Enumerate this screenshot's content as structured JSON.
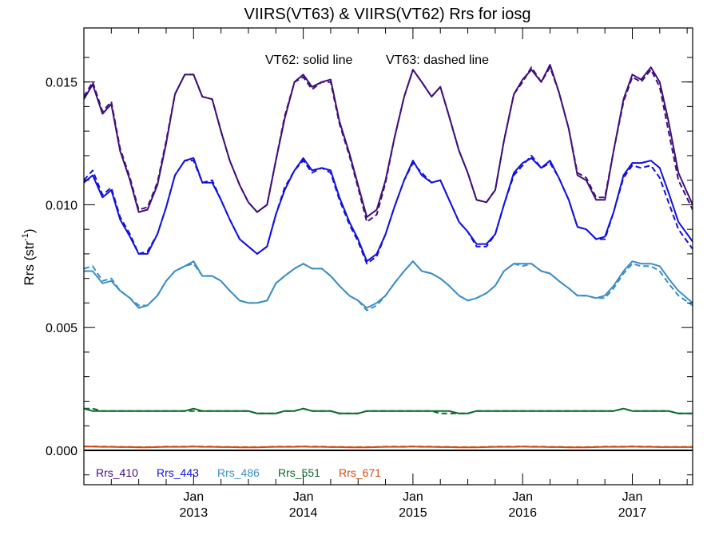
{
  "chart_data": {
    "type": "line",
    "title": "VIIRS(VT63) & VIIRS(VT62)  Rrs for iosg",
    "ylabel_main": "Rrs (str",
    "ylabel_sup": "-1",
    "ylabel_close": ")",
    "annotation_solid": "VT62: solid line",
    "annotation_dashed": "VT63: dashed line",
    "xlim": [
      2012.0,
      2017.55
    ],
    "ylim": [
      -0.0014,
      0.0172
    ],
    "y_ticks": [
      {
        "value": 0.0,
        "label": "0.000"
      },
      {
        "value": 0.005,
        "label": "0.005"
      },
      {
        "value": 0.01,
        "label": "0.010"
      },
      {
        "value": 0.015,
        "label": "0.015"
      }
    ],
    "x_ticks": [
      {
        "value": 2013.0,
        "month": "Jan",
        "year": "2013"
      },
      {
        "value": 2014.0,
        "month": "Jan",
        "year": "2014"
      },
      {
        "value": 2015.0,
        "month": "Jan",
        "year": "2015"
      },
      {
        "value": 2016.0,
        "month": "Jan",
        "year": "2016"
      },
      {
        "value": 2017.0,
        "month": "Jan",
        "year": "2017"
      }
    ],
    "zero_line": 0.0,
    "legend_position": "bottom-left",
    "x": [
      2012.0,
      2012.08,
      2012.17,
      2012.25,
      2012.33,
      2012.42,
      2012.5,
      2012.58,
      2012.67,
      2012.75,
      2012.83,
      2012.92,
      2013.0,
      2013.08,
      2013.17,
      2013.25,
      2013.33,
      2013.42,
      2013.5,
      2013.58,
      2013.67,
      2013.75,
      2013.83,
      2013.92,
      2014.0,
      2014.08,
      2014.17,
      2014.25,
      2014.33,
      2014.42,
      2014.5,
      2014.58,
      2014.67,
      2014.75,
      2014.83,
      2014.92,
      2015.0,
      2015.08,
      2015.17,
      2015.25,
      2015.33,
      2015.42,
      2015.5,
      2015.58,
      2015.67,
      2015.75,
      2015.83,
      2015.92,
      2016.0,
      2016.08,
      2016.17,
      2016.25,
      2016.33,
      2016.42,
      2016.5,
      2016.58,
      2016.67,
      2016.75,
      2016.83,
      2016.92,
      2017.0,
      2017.08,
      2017.17,
      2017.25,
      2017.33,
      2017.42,
      2017.55
    ],
    "series": [
      {
        "name": "Rrs_410",
        "color": "#3f0f7a",
        "solid": [
          0.0143,
          0.0149,
          0.0137,
          0.0141,
          0.0122,
          0.011,
          0.0097,
          0.0098,
          0.0108,
          0.0125,
          0.0145,
          0.0153,
          0.0153,
          0.0144,
          0.0143,
          0.013,
          0.0118,
          0.0108,
          0.0101,
          0.0097,
          0.01,
          0.0118,
          0.0135,
          0.015,
          0.0153,
          0.0148,
          0.015,
          0.0151,
          0.0134,
          0.0121,
          0.0108,
          0.0095,
          0.0098,
          0.011,
          0.0127,
          0.0144,
          0.0155,
          0.015,
          0.0144,
          0.0148,
          0.0136,
          0.0122,
          0.0113,
          0.0102,
          0.0101,
          0.0106,
          0.0126,
          0.0145,
          0.0151,
          0.0155,
          0.015,
          0.0157,
          0.0146,
          0.0131,
          0.0112,
          0.011,
          0.0102,
          0.0102,
          0.0122,
          0.0143,
          0.0153,
          0.0151,
          0.0156,
          0.015,
          0.0134,
          0.0113,
          0.01
        ],
        "dashed": [
          0.0144,
          0.015,
          0.0138,
          0.0142,
          0.0123,
          0.0111,
          0.0098,
          0.0099,
          0.0109,
          0.0126,
          0.0145,
          0.0153,
          0.0153,
          0.0144,
          0.0143,
          0.013,
          0.0118,
          0.0108,
          0.0101,
          0.0097,
          0.01,
          0.0118,
          0.0136,
          0.015,
          0.0152,
          0.0147,
          0.015,
          0.015,
          0.0133,
          0.012,
          0.0107,
          0.0093,
          0.0096,
          0.0109,
          0.0127,
          0.0144,
          0.0155,
          0.015,
          0.0144,
          0.0148,
          0.0136,
          0.0122,
          0.0113,
          0.0102,
          0.0101,
          0.0106,
          0.0126,
          0.0145,
          0.015,
          0.0156,
          0.015,
          0.0156,
          0.0146,
          0.0131,
          0.0113,
          0.0111,
          0.0103,
          0.0103,
          0.0122,
          0.0142,
          0.0152,
          0.015,
          0.0155,
          0.0148,
          0.013,
          0.011,
          0.0098
        ]
      },
      {
        "name": "Rrs_443",
        "color": "#1010e0",
        "solid": [
          0.0109,
          0.0112,
          0.0103,
          0.0106,
          0.0094,
          0.0087,
          0.008,
          0.008,
          0.0088,
          0.0099,
          0.0112,
          0.0118,
          0.0119,
          0.0109,
          0.0109,
          0.0102,
          0.0094,
          0.0086,
          0.0083,
          0.008,
          0.0083,
          0.0096,
          0.0106,
          0.0114,
          0.0119,
          0.0114,
          0.0115,
          0.0114,
          0.0103,
          0.0093,
          0.0086,
          0.0077,
          0.008,
          0.0088,
          0.0099,
          0.011,
          0.0118,
          0.0112,
          0.0109,
          0.011,
          0.0102,
          0.0093,
          0.0089,
          0.0084,
          0.0084,
          0.0088,
          0.01,
          0.0113,
          0.0117,
          0.0119,
          0.0115,
          0.0118,
          0.0111,
          0.0102,
          0.0091,
          0.009,
          0.0086,
          0.0087,
          0.0097,
          0.0112,
          0.0117,
          0.0117,
          0.0118,
          0.0115,
          0.0105,
          0.0093,
          0.0085
        ],
        "dashed": [
          0.011,
          0.0114,
          0.0104,
          0.0107,
          0.0095,
          0.0088,
          0.008,
          0.0081,
          0.0088,
          0.0099,
          0.0112,
          0.0118,
          0.0118,
          0.0109,
          0.011,
          0.0102,
          0.0094,
          0.0086,
          0.0083,
          0.008,
          0.0083,
          0.0096,
          0.0107,
          0.0114,
          0.0118,
          0.0113,
          0.0115,
          0.0113,
          0.0102,
          0.0092,
          0.0085,
          0.0076,
          0.0079,
          0.0088,
          0.0099,
          0.011,
          0.0117,
          0.0113,
          0.0109,
          0.011,
          0.0102,
          0.0093,
          0.0089,
          0.0083,
          0.0083,
          0.0088,
          0.01,
          0.0112,
          0.0116,
          0.012,
          0.0115,
          0.0117,
          0.0111,
          0.0102,
          0.0091,
          0.009,
          0.0086,
          0.0086,
          0.0097,
          0.0111,
          0.0116,
          0.0115,
          0.0116,
          0.0111,
          0.0101,
          0.009,
          0.0082
        ]
      },
      {
        "name": "Rrs_486",
        "color": "#3a8ec8",
        "solid": [
          0.0073,
          0.0073,
          0.0068,
          0.0069,
          0.0065,
          0.0062,
          0.0058,
          0.0059,
          0.0063,
          0.0069,
          0.0073,
          0.0075,
          0.0077,
          0.0071,
          0.0071,
          0.0069,
          0.0065,
          0.0061,
          0.006,
          0.006,
          0.0061,
          0.0068,
          0.0071,
          0.0074,
          0.0076,
          0.0074,
          0.0074,
          0.0071,
          0.0067,
          0.0063,
          0.0061,
          0.0058,
          0.006,
          0.0063,
          0.0068,
          0.0073,
          0.0077,
          0.0073,
          0.0072,
          0.007,
          0.0067,
          0.0063,
          0.0061,
          0.0062,
          0.0064,
          0.0067,
          0.0073,
          0.0076,
          0.0076,
          0.0076,
          0.0073,
          0.0072,
          0.0069,
          0.0066,
          0.0063,
          0.0063,
          0.0062,
          0.0063,
          0.0067,
          0.0073,
          0.0077,
          0.0076,
          0.0076,
          0.0075,
          0.007,
          0.0065,
          0.006
        ],
        "dashed": [
          0.0074,
          0.0075,
          0.0069,
          0.007,
          0.0065,
          0.0062,
          0.0059,
          0.0059,
          0.0063,
          0.0069,
          0.0073,
          0.0075,
          0.0076,
          0.0071,
          0.0071,
          0.0069,
          0.0065,
          0.0061,
          0.006,
          0.006,
          0.0061,
          0.0068,
          0.0071,
          0.0074,
          0.0076,
          0.0074,
          0.0074,
          0.0071,
          0.0067,
          0.0063,
          0.0061,
          0.0057,
          0.0059,
          0.0063,
          0.0068,
          0.0073,
          0.0077,
          0.0073,
          0.0072,
          0.007,
          0.0067,
          0.0063,
          0.0061,
          0.0062,
          0.0064,
          0.0067,
          0.0073,
          0.0076,
          0.0075,
          0.0076,
          0.0073,
          0.0072,
          0.0069,
          0.0066,
          0.0063,
          0.0063,
          0.0062,
          0.0062,
          0.0066,
          0.0072,
          0.0076,
          0.0075,
          0.0075,
          0.0073,
          0.0068,
          0.0063,
          0.0059
        ]
      },
      {
        "name": "Rrs_551",
        "color": "#0c6a2c",
        "solid": [
          0.0017,
          0.0016,
          0.0016,
          0.0016,
          0.0016,
          0.0016,
          0.0016,
          0.0016,
          0.0016,
          0.0016,
          0.0016,
          0.0016,
          0.0017,
          0.0016,
          0.0016,
          0.0016,
          0.0016,
          0.0016,
          0.0016,
          0.0015,
          0.0015,
          0.0015,
          0.0016,
          0.0016,
          0.0017,
          0.0016,
          0.0016,
          0.0016,
          0.0015,
          0.0015,
          0.0015,
          0.0016,
          0.0016,
          0.0016,
          0.0016,
          0.0016,
          0.0016,
          0.0016,
          0.0016,
          0.0016,
          0.0016,
          0.0015,
          0.0015,
          0.0016,
          0.0016,
          0.0016,
          0.0016,
          0.0016,
          0.0016,
          0.0016,
          0.0016,
          0.0016,
          0.0016,
          0.0016,
          0.0016,
          0.0016,
          0.0016,
          0.0016,
          0.0016,
          0.0017,
          0.0016,
          0.0016,
          0.0016,
          0.0016,
          0.0016,
          0.0015,
          0.0015
        ],
        "dashed": [
          0.0017,
          0.0017,
          0.0016,
          0.0016,
          0.0016,
          0.0016,
          0.0016,
          0.0016,
          0.0016,
          0.0016,
          0.0016,
          0.0016,
          0.0016,
          0.0016,
          0.0016,
          0.0016,
          0.0016,
          0.0016,
          0.0016,
          0.0015,
          0.0015,
          0.0015,
          0.0016,
          0.0016,
          0.0017,
          0.0016,
          0.0016,
          0.0016,
          0.0015,
          0.0015,
          0.0015,
          0.0016,
          0.0016,
          0.0016,
          0.0016,
          0.0016,
          0.0016,
          0.0016,
          0.0016,
          0.0015,
          0.0015,
          0.0015,
          0.0015,
          0.0016,
          0.0016,
          0.0016,
          0.0016,
          0.0016,
          0.0016,
          0.0016,
          0.0016,
          0.0016,
          0.0016,
          0.0016,
          0.0016,
          0.0016,
          0.0016,
          0.0016,
          0.0016,
          0.0017,
          0.0016,
          0.0016,
          0.0016,
          0.0016,
          0.0016,
          0.0015,
          0.0015
        ]
      },
      {
        "name": "Rrs_671",
        "color": "#d24a10",
        "solid": [
          0.00015,
          0.00015,
          0.00014,
          0.00014,
          0.00013,
          0.00013,
          0.00012,
          0.00012,
          0.00013,
          0.00014,
          0.00014,
          0.00014,
          0.00015,
          0.00014,
          0.00014,
          0.00013,
          0.00013,
          0.00012,
          0.00012,
          0.00012,
          0.00013,
          0.00014,
          0.00014,
          0.00014,
          0.00015,
          0.00014,
          0.00014,
          0.00013,
          0.00013,
          0.00012,
          0.00012,
          0.00012,
          0.00013,
          0.00014,
          0.00014,
          0.00014,
          0.00015,
          0.00014,
          0.00014,
          0.00013,
          0.00013,
          0.00012,
          0.00012,
          0.00012,
          0.00013,
          0.00014,
          0.00014,
          0.00014,
          0.00015,
          0.00014,
          0.00014,
          0.00013,
          0.00013,
          0.00012,
          0.00012,
          0.00012,
          0.00013,
          0.00014,
          0.00014,
          0.00014,
          0.00015,
          0.00014,
          0.00014,
          0.00013,
          0.00013,
          0.00013,
          0.00013
        ],
        "dashed": [
          0.00016,
          0.00016,
          0.00015,
          0.00015,
          0.00014,
          0.00014,
          0.00013,
          0.00013,
          0.00014,
          0.00015,
          0.00015,
          0.00015,
          0.00016,
          0.00015,
          0.00015,
          0.00014,
          0.00014,
          0.00013,
          0.00013,
          0.00013,
          0.00014,
          0.00015,
          0.00015,
          0.00015,
          0.00016,
          0.00015,
          0.00015,
          0.00014,
          0.00014,
          0.00013,
          0.00013,
          0.00013,
          0.00014,
          0.00015,
          0.00015,
          0.00015,
          0.00016,
          0.00015,
          0.00015,
          0.00014,
          0.00014,
          0.00013,
          0.00013,
          0.00013,
          0.00014,
          0.00015,
          0.00015,
          0.00015,
          0.00016,
          0.00015,
          0.00015,
          0.00014,
          0.00014,
          0.00013,
          0.00013,
          0.00013,
          0.00014,
          0.00015,
          0.00015,
          0.00015,
          0.00016,
          0.00015,
          0.00015,
          0.00014,
          0.00014,
          0.00014,
          0.00014
        ]
      }
    ]
  }
}
